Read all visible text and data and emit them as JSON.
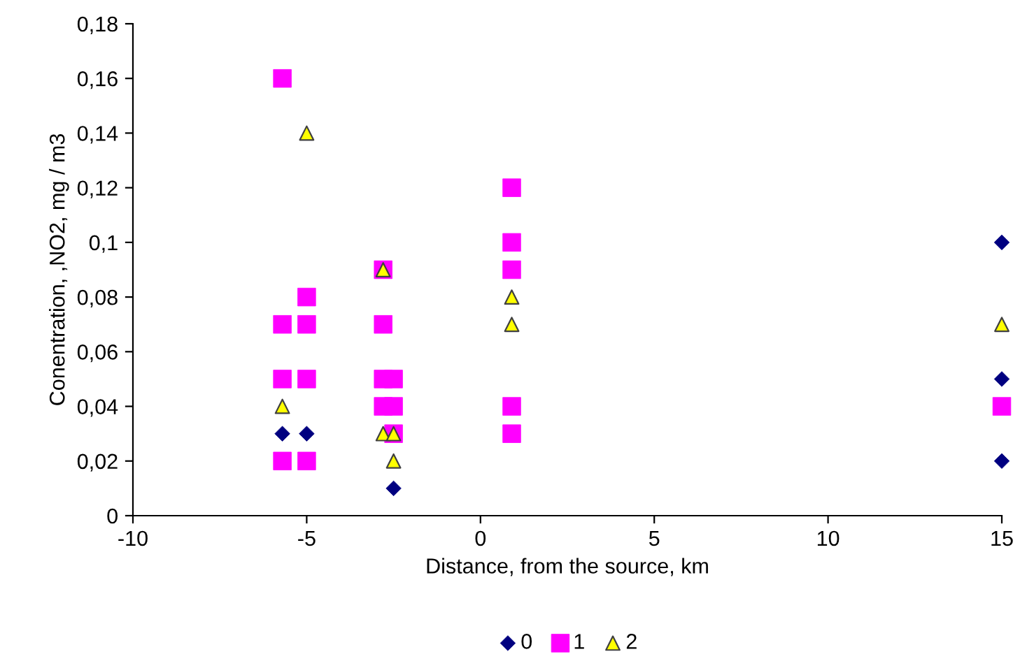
{
  "chart_data": {
    "type": "scatter",
    "xlabel": "Distance, from the source, km",
    "ylabel": "Conentration, ,NO2, mg / m3",
    "xlim": [
      -10,
      15
    ],
    "xticks": [
      -10,
      -5,
      0,
      5,
      10,
      15
    ],
    "ylim": [
      0,
      0.18
    ],
    "yticks": [
      {
        "value": 0,
        "label": "0"
      },
      {
        "value": 0.02,
        "label": "0,02"
      },
      {
        "value": 0.04,
        "label": "0,04"
      },
      {
        "value": 0.06,
        "label": "0,06"
      },
      {
        "value": 0.08,
        "label": "0,08"
      },
      {
        "value": 0.1,
        "label": "0,1"
      },
      {
        "value": 0.12,
        "label": "0,12"
      },
      {
        "value": 0.14,
        "label": "0,14"
      },
      {
        "value": 0.16,
        "label": "0,16"
      },
      {
        "value": 0.18,
        "label": "0,18"
      }
    ],
    "grid": false,
    "legend": "bottom",
    "series": [
      {
        "name": "0",
        "color": "#000080",
        "marker": "diamond",
        "x": [
          -5.7,
          -5,
          -2.5,
          15,
          15,
          15
        ],
        "values": [
          0.03,
          0.03,
          0.01,
          0.1,
          0.05,
          0.02
        ]
      },
      {
        "name": "1",
        "color": "#ff00ff",
        "marker": "square",
        "x": [
          -5.7,
          -5.7,
          -5.7,
          -5.7,
          -5,
          -5,
          -5,
          -5,
          -2.8,
          -2.8,
          -2.8,
          -2.8,
          -2.5,
          -2.5,
          -2.5,
          0.9,
          0.9,
          0.9,
          0.9,
          0.9,
          15
        ],
        "values": [
          0.16,
          0.07,
          0.05,
          0.02,
          0.08,
          0.07,
          0.05,
          0.02,
          0.09,
          0.07,
          0.05,
          0.04,
          0.05,
          0.04,
          0.03,
          0.12,
          0.1,
          0.09,
          0.04,
          0.03,
          0.04
        ]
      },
      {
        "name": "2",
        "color": "#ffff00",
        "marker": "triangle",
        "x": [
          -5.7,
          -5,
          -2.8,
          -2.8,
          -2.5,
          -2.5,
          0.9,
          0.9,
          15
        ],
        "values": [
          0.04,
          0.14,
          0.09,
          0.03,
          0.03,
          0.02,
          0.08,
          0.07,
          0.07
        ]
      }
    ]
  }
}
